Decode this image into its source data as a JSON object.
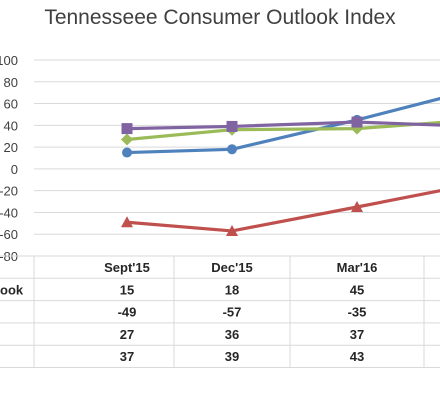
{
  "chart_data": {
    "type": "line",
    "title": "Tennesseee Consumer Outlook Index",
    "categories": [
      "Sept'15",
      "Dec'15",
      "Mar'16"
    ],
    "ylim": [
      -80,
      100
    ],
    "yticks": [
      "100",
      "80",
      "60",
      "40",
      "20",
      "0",
      "-20",
      "-40",
      "-60",
      "-80"
    ],
    "grid": true,
    "series": [
      {
        "name": "ook",
        "color": "#4f81bd",
        "marker": "circle",
        "values": [
          15,
          18,
          45
        ],
        "labels": [
          "15",
          "18",
          "45"
        ],
        "trailing_value": 66
      },
      {
        "name": "",
        "color": "#c0504d",
        "marker": "triangle",
        "values": [
          -49,
          -57,
          -35
        ],
        "labels": [
          "-49",
          "-57",
          "-35"
        ],
        "trailing_value": -19
      },
      {
        "name": "",
        "color": "#9bbb59",
        "marker": "diamond",
        "values": [
          27,
          36,
          37
        ],
        "labels": [
          "27",
          "36",
          "37"
        ],
        "trailing_value": 43
      },
      {
        "name": "",
        "color": "#8064a2",
        "marker": "square",
        "values": [
          37,
          39,
          43
        ],
        "labels": [
          "37",
          "39",
          "43"
        ],
        "trailing_value": 40
      }
    ]
  }
}
